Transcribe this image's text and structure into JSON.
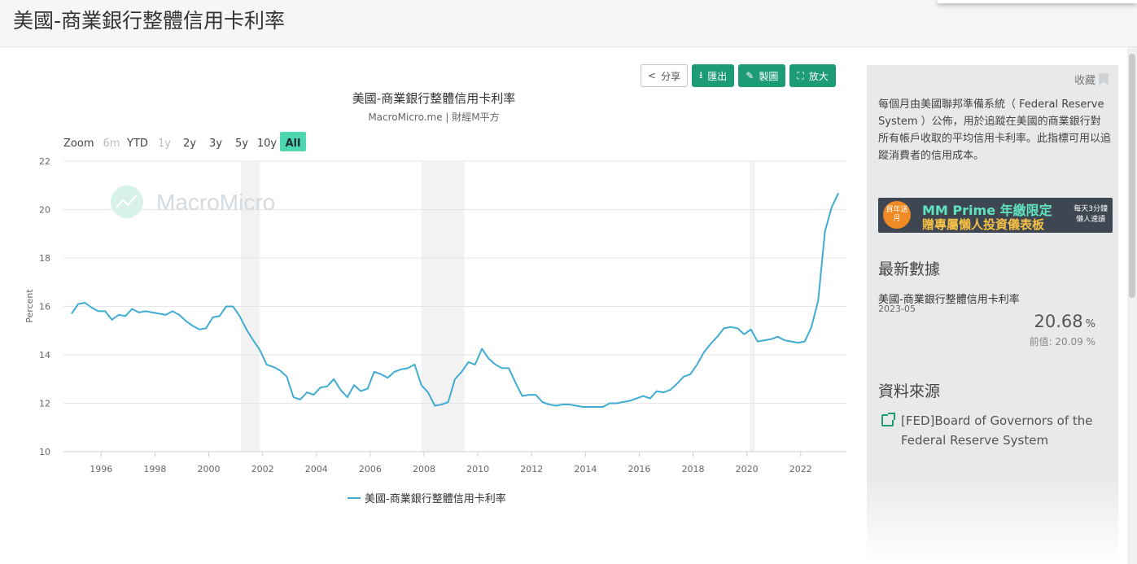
{
  "page": {
    "title": "美國-商業銀行整體信用卡利率"
  },
  "toolbar": {
    "share_label": "分享",
    "export_label": "匯出",
    "draw_label": "製圖",
    "expand_label": "放大"
  },
  "range_selector": {
    "zoom_label": "Zoom",
    "buttons": [
      {
        "label": "6m",
        "state": "disabled"
      },
      {
        "label": "YTD",
        "state": "normal"
      },
      {
        "label": "1y",
        "state": "disabled"
      },
      {
        "label": "2y",
        "state": "normal"
      },
      {
        "label": "3y",
        "state": "normal"
      },
      {
        "label": "5y",
        "state": "normal"
      },
      {
        "label": "10y",
        "state": "normal"
      },
      {
        "label": "All",
        "state": "active"
      }
    ]
  },
  "watermark": "MacroMicro",
  "sidebar": {
    "favorite_label": "收藏",
    "description": "每個月由美國聯邦準備系統（ Federal Reserve System ）公佈，用於追蹤在美國的商業銀行對所有帳戶收取的平均信用卡利率。此指標可用以追蹤消費者的信用成本。",
    "banner": {
      "badge": "買年送月",
      "main": "MM Prime 年繳限定",
      "sub": "贈專屬懶人投資儀表板",
      "side_line1": "每天3分鐘",
      "side_line2": "懶人速讀"
    },
    "latest_title": "最新數據",
    "latest": {
      "name": "美國-商業銀行整體信用卡利率",
      "date": "2023-05",
      "value": "20.68",
      "unit": "%",
      "previous": "前值: 20.09 %"
    },
    "source_title": "資料來源",
    "source_text": "[FED]Board of Governors of the Federal Reserve System"
  },
  "colors": {
    "line": "#41abd2",
    "accent": "#1d9a76",
    "active_range": "#4ed6b0",
    "recession": "#f2f2f2"
  },
  "chart_data": {
    "type": "line",
    "title": "美國-商業銀行整體信用卡利率",
    "subtitle": "MacroMicro.me | 財經M平方",
    "xlabel": "",
    "ylabel": "Percent",
    "ylim": [
      10,
      22
    ],
    "yticks": [
      10,
      12,
      14,
      16,
      18,
      20,
      22
    ],
    "xlim": [
      1994.6,
      2023.7
    ],
    "xticks": [
      1996,
      1998,
      2000,
      2002,
      2004,
      2006,
      2008,
      2010,
      2012,
      2014,
      2016,
      2018,
      2020,
      2022
    ],
    "grid": true,
    "legend": "bottom-center",
    "recession_bands": [
      [
        2001.2,
        2001.9
      ],
      [
        2007.9,
        2009.5
      ],
      [
        2020.1,
        2020.3
      ]
    ],
    "series": [
      {
        "name": "美國-商業銀行整體信用卡利率",
        "x": [
          1994.9,
          1995.15,
          1995.4,
          1995.65,
          1995.9,
          1996.15,
          1996.4,
          1996.65,
          1996.9,
          1997.15,
          1997.4,
          1997.65,
          1997.9,
          1998.15,
          1998.4,
          1998.65,
          1998.9,
          1999.15,
          1999.4,
          1999.65,
          1999.9,
          2000.15,
          2000.4,
          2000.65,
          2000.9,
          2001.15,
          2001.4,
          2001.65,
          2001.9,
          2002.15,
          2002.4,
          2002.65,
          2002.9,
          2003.15,
          2003.4,
          2003.65,
          2003.9,
          2004.15,
          2004.4,
          2004.65,
          2004.9,
          2005.15,
          2005.4,
          2005.65,
          2005.9,
          2006.15,
          2006.4,
          2006.65,
          2006.9,
          2007.15,
          2007.4,
          2007.65,
          2007.9,
          2008.15,
          2008.4,
          2008.65,
          2008.9,
          2009.15,
          2009.4,
          2009.65,
          2009.9,
          2010.15,
          2010.4,
          2010.65,
          2010.9,
          2011.15,
          2011.4,
          2011.65,
          2011.9,
          2012.15,
          2012.4,
          2012.65,
          2012.9,
          2013.15,
          2013.4,
          2013.65,
          2013.9,
          2014.15,
          2014.4,
          2014.65,
          2014.9,
          2015.15,
          2015.4,
          2015.65,
          2015.9,
          2016.15,
          2016.4,
          2016.65,
          2016.9,
          2017.15,
          2017.4,
          2017.65,
          2017.9,
          2018.15,
          2018.4,
          2018.65,
          2018.9,
          2019.15,
          2019.4,
          2019.65,
          2019.9,
          2020.15,
          2020.4,
          2020.65,
          2020.9,
          2021.15,
          2021.4,
          2021.65,
          2021.9,
          2022.15,
          2022.4,
          2022.65,
          2022.9,
          2023.15,
          2023.4
        ],
        "y": [
          15.7,
          16.1,
          16.15,
          15.95,
          15.8,
          15.8,
          15.45,
          15.65,
          15.6,
          15.9,
          15.75,
          15.8,
          15.75,
          15.7,
          15.65,
          15.8,
          15.65,
          15.4,
          15.2,
          15.05,
          15.1,
          15.55,
          15.6,
          16.0,
          16.0,
          15.6,
          15.05,
          14.6,
          14.2,
          13.6,
          13.5,
          13.35,
          13.1,
          12.25,
          12.15,
          12.45,
          12.35,
          12.65,
          12.7,
          13.0,
          12.55,
          12.25,
          12.75,
          12.5,
          12.6,
          13.3,
          13.2,
          13.05,
          13.3,
          13.4,
          13.45,
          13.6,
          12.75,
          12.45,
          11.9,
          11.95,
          12.05,
          13.0,
          13.3,
          13.7,
          13.6,
          14.25,
          13.85,
          13.6,
          13.45,
          13.45,
          12.85,
          12.3,
          12.35,
          12.35,
          12.05,
          11.95,
          11.9,
          11.95,
          11.95,
          11.9,
          11.85,
          11.85,
          11.85,
          11.85,
          12.0,
          12.0,
          12.05,
          12.1,
          12.2,
          12.3,
          12.2,
          12.5,
          12.45,
          12.55,
          12.8,
          13.1,
          13.2,
          13.6,
          14.1,
          14.45,
          14.75,
          15.1,
          15.15,
          15.1,
          14.85,
          15.05,
          14.55,
          14.6,
          14.65,
          14.75,
          14.6,
          14.55,
          14.5,
          14.55,
          15.15,
          16.25,
          19.1,
          20.09,
          20.68
        ]
      }
    ]
  }
}
